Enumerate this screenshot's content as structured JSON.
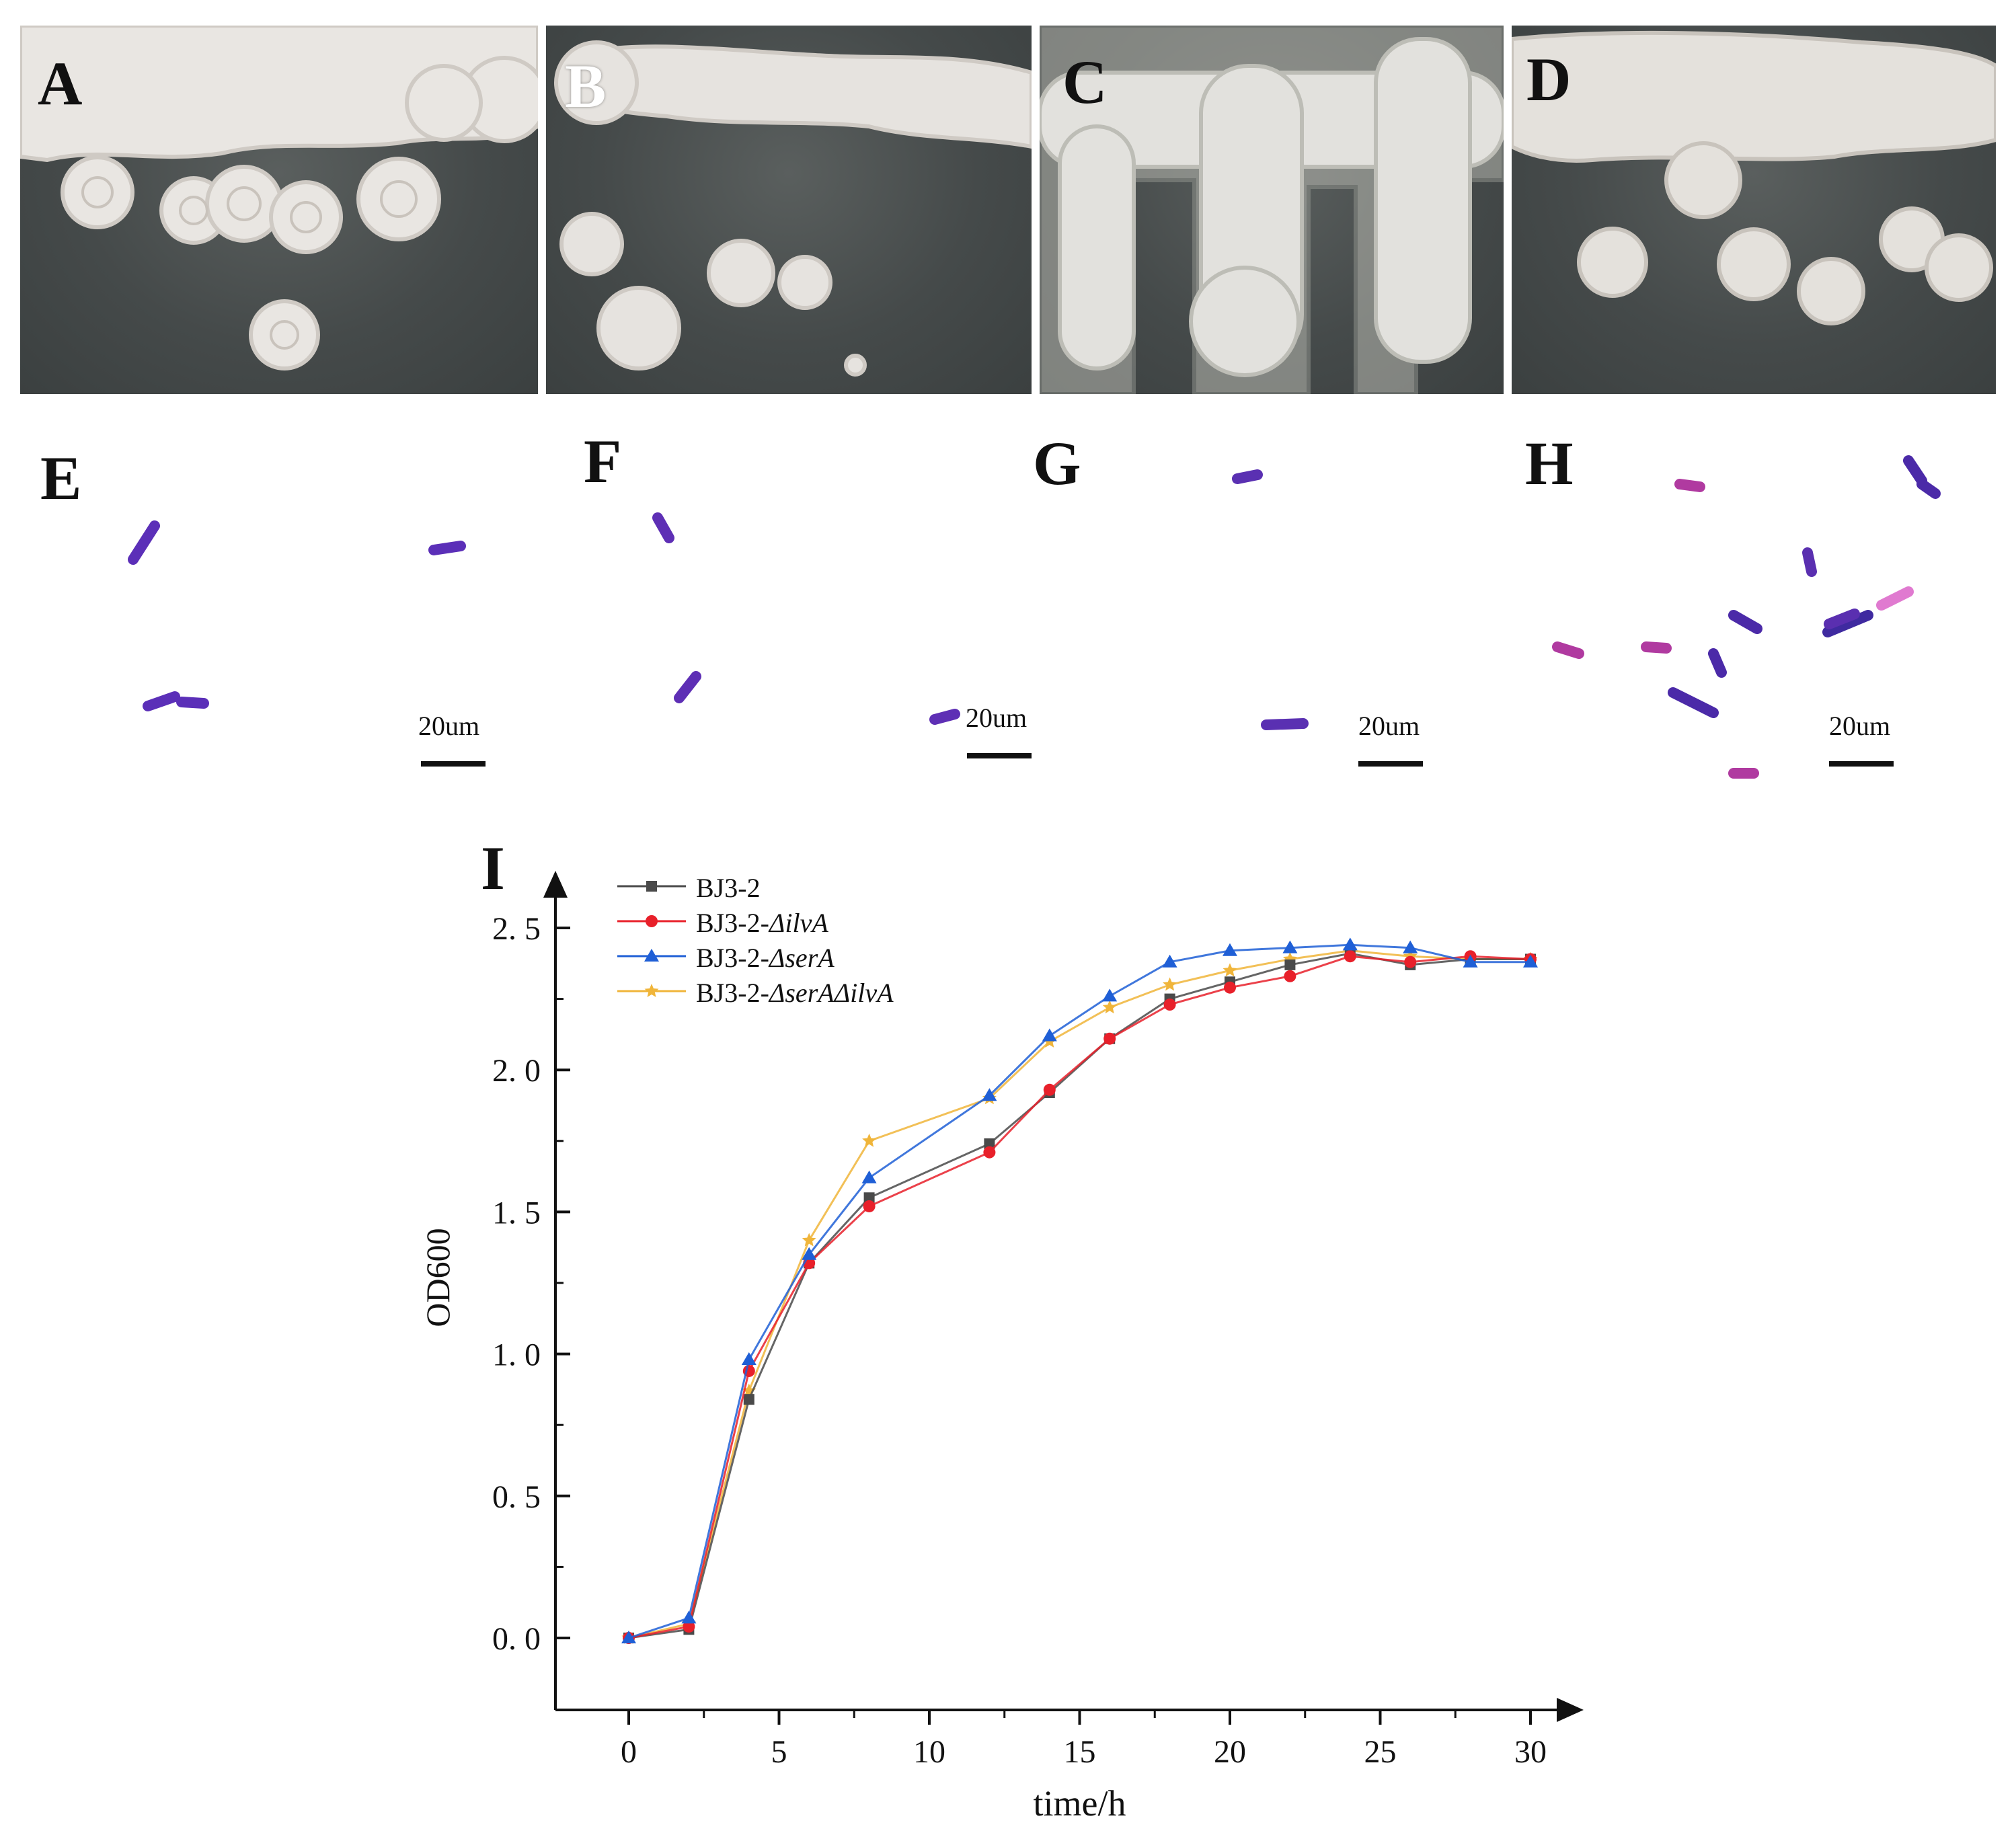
{
  "panels": {
    "A": "A",
    "B": "B",
    "C": "C",
    "D": "D",
    "E": "E",
    "F": "F",
    "G": "G",
    "H": "H",
    "I": "I"
  },
  "scale_bars": [
    "20um",
    "20um",
    "20um",
    "20um"
  ],
  "colors": {
    "BJ3-2": "#4a4a4a",
    "BJ3-2-ΔilvA": "#e8202a",
    "BJ3-2-ΔserA": "#1f5fd6",
    "BJ3-2-ΔserAΔilvA": "#f0b53a"
  },
  "chart_data": {
    "type": "line",
    "xlabel": "time/h",
    "ylabel": "OD600",
    "xlim": [
      -2.5,
      32
    ],
    "ylim": [
      -0.25,
      2.7
    ],
    "xticks": [
      0,
      5,
      10,
      15,
      20,
      25,
      30
    ],
    "xtick_labels": [
      "0",
      "5",
      "10",
      "15",
      "20",
      "25",
      "30"
    ],
    "yticks": [
      0.0,
      0.5,
      1.0,
      1.5,
      2.0,
      2.5
    ],
    "ytick_labels": [
      "0. 0",
      "0. 5",
      "1. 0",
      "1. 5",
      "2. 0",
      "2. 5"
    ],
    "legend_position": "top-left",
    "series": [
      {
        "name": "BJ3-2",
        "marker": "square",
        "color": "#4a4a4a",
        "x": [
          0,
          2,
          4,
          6,
          8,
          12,
          14,
          16,
          18,
          20,
          22,
          24,
          26,
          28,
          30
        ],
        "y": [
          0.0,
          0.03,
          0.84,
          1.32,
          1.55,
          1.74,
          1.92,
          2.11,
          2.25,
          2.31,
          2.37,
          2.41,
          2.37,
          2.39,
          2.39
        ]
      },
      {
        "name": "BJ3-2-ΔilvA",
        "marker": "circle",
        "color": "#e8202a",
        "x": [
          0,
          2,
          4,
          6,
          8,
          12,
          14,
          16,
          18,
          20,
          22,
          24,
          26,
          28,
          30
        ],
        "y": [
          0.0,
          0.04,
          0.94,
          1.32,
          1.52,
          1.71,
          1.93,
          2.11,
          2.23,
          2.29,
          2.33,
          2.4,
          2.38,
          2.4,
          2.39
        ]
      },
      {
        "name": "BJ3-2-ΔserA",
        "marker": "triangle",
        "color": "#1f5fd6",
        "x": [
          0,
          2,
          4,
          6,
          8,
          12,
          14,
          16,
          18,
          20,
          22,
          24,
          26,
          28,
          30
        ],
        "y": [
          0.0,
          0.07,
          0.98,
          1.35,
          1.62,
          1.91,
          2.12,
          2.26,
          2.38,
          2.42,
          2.43,
          2.44,
          2.43,
          2.38,
          2.38
        ]
      },
      {
        "name": "BJ3-2-ΔserAΔilvA",
        "marker": "star",
        "color": "#f0b53a",
        "x": [
          0,
          2,
          4,
          6,
          8,
          12,
          14,
          16,
          18,
          20,
          22,
          24,
          26,
          28,
          30
        ],
        "y": [
          0.0,
          0.05,
          0.87,
          1.4,
          1.75,
          1.9,
          2.1,
          2.22,
          2.3,
          2.35,
          2.39,
          2.42,
          2.4,
          2.39,
          2.39
        ]
      }
    ]
  }
}
